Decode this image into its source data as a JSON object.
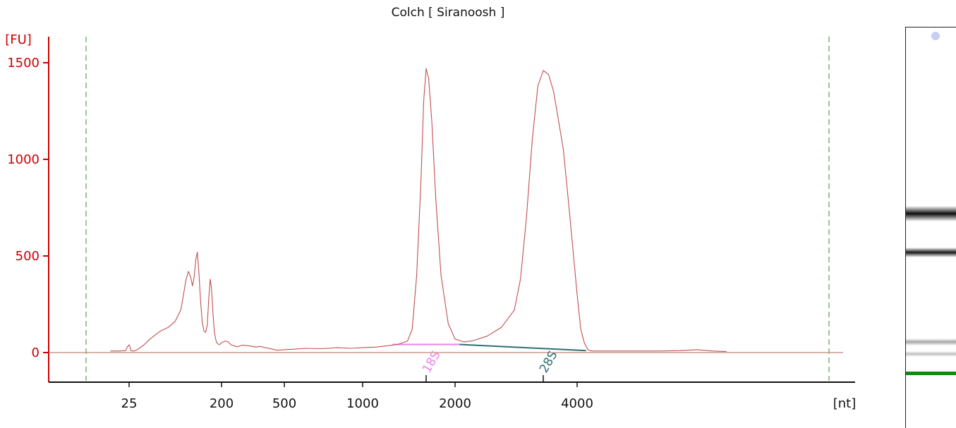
{
  "title": "Colch  [ Siranoosh ]",
  "chart_data": {
    "type": "line",
    "title": "Colch  [ Siranoosh ]",
    "ylabel": "[FU]",
    "xlabel": "[nt]",
    "ylim": [
      -150,
      1650
    ],
    "y_ticks": [
      0,
      500,
      1000,
      1500
    ],
    "x_scale": "log (size ladder)",
    "x_ticks": [
      "25",
      "200",
      "500",
      "1000",
      "2000",
      "4000"
    ],
    "x_tick_values": [
      25,
      200,
      500,
      1000,
      2000,
      4000
    ],
    "grid": false,
    "series": [
      {
        "color": "#c0504d",
        "points": [
          [
            20,
            8
          ],
          [
            22,
            8
          ],
          [
            24,
            10
          ],
          [
            24.5,
            30
          ],
          [
            25,
            40
          ],
          [
            25.5,
            30
          ],
          [
            26,
            10
          ],
          [
            28,
            8
          ],
          [
            30,
            15
          ],
          [
            35,
            40
          ],
          [
            40,
            70
          ],
          [
            50,
            110
          ],
          [
            60,
            130
          ],
          [
            70,
            160
          ],
          [
            80,
            220
          ],
          [
            85,
            300
          ],
          [
            90,
            380
          ],
          [
            95,
            420
          ],
          [
            100,
            390
          ],
          [
            104,
            345
          ],
          [
            108,
            390
          ],
          [
            112,
            480
          ],
          [
            116,
            520
          ],
          [
            120,
            420
          ],
          [
            125,
            260
          ],
          [
            130,
            150
          ],
          [
            135,
            110
          ],
          [
            140,
            105
          ],
          [
            145,
            140
          ],
          [
            150,
            280
          ],
          [
            155,
            380
          ],
          [
            160,
            330
          ],
          [
            165,
            200
          ],
          [
            170,
            110
          ],
          [
            175,
            70
          ],
          [
            180,
            50
          ],
          [
            190,
            40
          ],
          [
            200,
            50
          ],
          [
            210,
            60
          ],
          [
            220,
            55
          ],
          [
            230,
            40
          ],
          [
            250,
            30
          ],
          [
            270,
            38
          ],
          [
            300,
            35
          ],
          [
            330,
            28
          ],
          [
            350,
            32
          ],
          [
            380,
            25
          ],
          [
            420,
            18
          ],
          [
            450,
            12
          ],
          [
            500,
            15
          ],
          [
            550,
            18
          ],
          [
            600,
            22
          ],
          [
            700,
            20
          ],
          [
            800,
            25
          ],
          [
            900,
            22
          ],
          [
            1000,
            25
          ],
          [
            1100,
            28
          ],
          [
            1200,
            35
          ],
          [
            1300,
            42
          ],
          [
            1400,
            60
          ],
          [
            1450,
            120
          ],
          [
            1500,
            400
          ],
          [
            1550,
            900
          ],
          [
            1580,
            1300
          ],
          [
            1610,
            1470
          ],
          [
            1640,
            1420
          ],
          [
            1680,
            1200
          ],
          [
            1730,
            800
          ],
          [
            1800,
            400
          ],
          [
            1900,
            150
          ],
          [
            2000,
            70
          ],
          [
            2100,
            55
          ],
          [
            2200,
            60
          ],
          [
            2400,
            85
          ],
          [
            2600,
            130
          ],
          [
            2800,
            220
          ],
          [
            2900,
            380
          ],
          [
            3000,
            700
          ],
          [
            3100,
            1100
          ],
          [
            3200,
            1380
          ],
          [
            3300,
            1460
          ],
          [
            3400,
            1440
          ],
          [
            3500,
            1350
          ],
          [
            3600,
            1200
          ],
          [
            3700,
            1050
          ],
          [
            3800,
            800
          ],
          [
            3900,
            550
          ],
          [
            4000,
            300
          ],
          [
            4100,
            120
          ],
          [
            4200,
            50
          ],
          [
            4300,
            15
          ],
          [
            4400,
            8
          ],
          [
            5000,
            8
          ],
          [
            6000,
            8
          ],
          [
            7000,
            8
          ],
          [
            8000,
            10
          ],
          [
            9000,
            15
          ],
          [
            10000,
            8
          ],
          [
            11000,
            5
          ]
        ]
      }
    ],
    "peaks": [
      {
        "label": "18S",
        "x": 1610,
        "y": 1470,
        "color": "#ee82ee"
      },
      {
        "label": "28S",
        "x": 3300,
        "y": 1460,
        "color": "#2f6f73"
      }
    ],
    "baseline_segments": [
      {
        "peak": "18S",
        "color": "#ee82ee",
        "from": [
          1250,
          42
        ],
        "to": [
          2050,
          42
        ]
      },
      {
        "peak": "28S",
        "color": "#2f6f73",
        "from": [
          2050,
          42
        ],
        "to": [
          4250,
          10
        ]
      }
    ],
    "baseline_color": "#6dbf6d",
    "axis_color": "#cc0000",
    "marker_lines": [
      15,
      22000
    ],
    "marker_line_color": "#3a8a3a"
  },
  "gel": {
    "bands": [
      {
        "kind": "28S",
        "intensity": 0.95
      },
      {
        "kind": "18S",
        "intensity": 0.9
      },
      {
        "kind": "small-rna",
        "intensity": 0.35
      },
      {
        "kind": "small-rna",
        "intensity": 0.25
      },
      {
        "kind": "lower-marker",
        "intensity": 1.0,
        "color": "#118a11"
      }
    ]
  }
}
